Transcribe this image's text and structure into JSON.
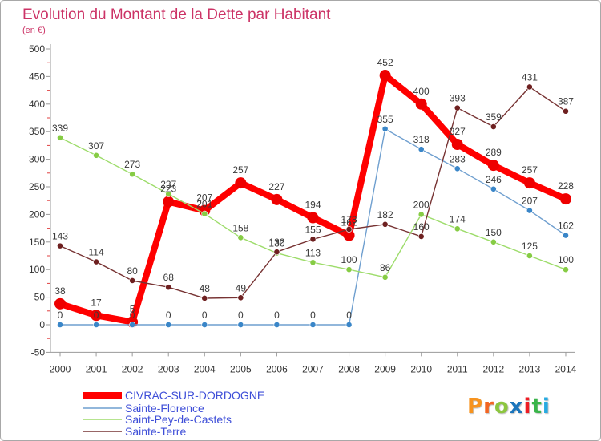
{
  "chart_data": {
    "type": "line",
    "title": "Evolution du Montant de la Dette par Habitant",
    "subtitle": "(en €)",
    "xlabel": "",
    "ylabel": "(en €)",
    "x": [
      "2000",
      "2001",
      "2002",
      "2003",
      "2004",
      "2005",
      "2006",
      "2007",
      "2008",
      "2009",
      "2010",
      "2011",
      "2012",
      "2013",
      "2014"
    ],
    "ylim": [
      -50,
      500
    ],
    "y_ticks": [
      "-50",
      "0",
      "50",
      "100",
      "150",
      "200",
      "250",
      "300",
      "350",
      "400",
      "450",
      "500"
    ],
    "grid": false,
    "legend_position": "bottom-left",
    "series": [
      {
        "name": "CIVRAC-SUR-DORDOGNE",
        "color": "#ff0000",
        "marker_color": "#ee0000",
        "values": [
          38,
          17,
          5,
          223,
          207,
          257,
          227,
          194,
          162,
          452,
          400,
          327,
          289,
          257,
          228
        ]
      },
      {
        "name": "Sainte-Florence",
        "color": "#6f9fcf",
        "marker_color": "#3a86c8",
        "values": [
          0,
          0,
          0,
          0,
          0,
          0,
          0,
          0,
          0,
          355,
          318,
          283,
          246,
          207,
          162
        ]
      },
      {
        "name": "Saint-Pey-de-Castets",
        "color": "#9ddc6a",
        "marker_color": "#86cc44",
        "values": [
          339,
          307,
          273,
          237,
          201,
          158,
          130,
          113,
          100,
          86,
          200,
          174,
          150,
          125,
          100
        ]
      },
      {
        "name": "Sainte-Terre",
        "color": "#773333",
        "marker_color": "#6e2020",
        "values": [
          143,
          114,
          80,
          68,
          48,
          49,
          132,
          155,
          173,
          182,
          160,
          393,
          359,
          431,
          387
        ]
      }
    ]
  },
  "logo": {
    "text": "Proxiti",
    "colors": [
      "#f7931e",
      "#f26522",
      "#8cc63f",
      "#1b75bc",
      "#ed1c24",
      "#39b54a",
      "#27aae1"
    ]
  }
}
